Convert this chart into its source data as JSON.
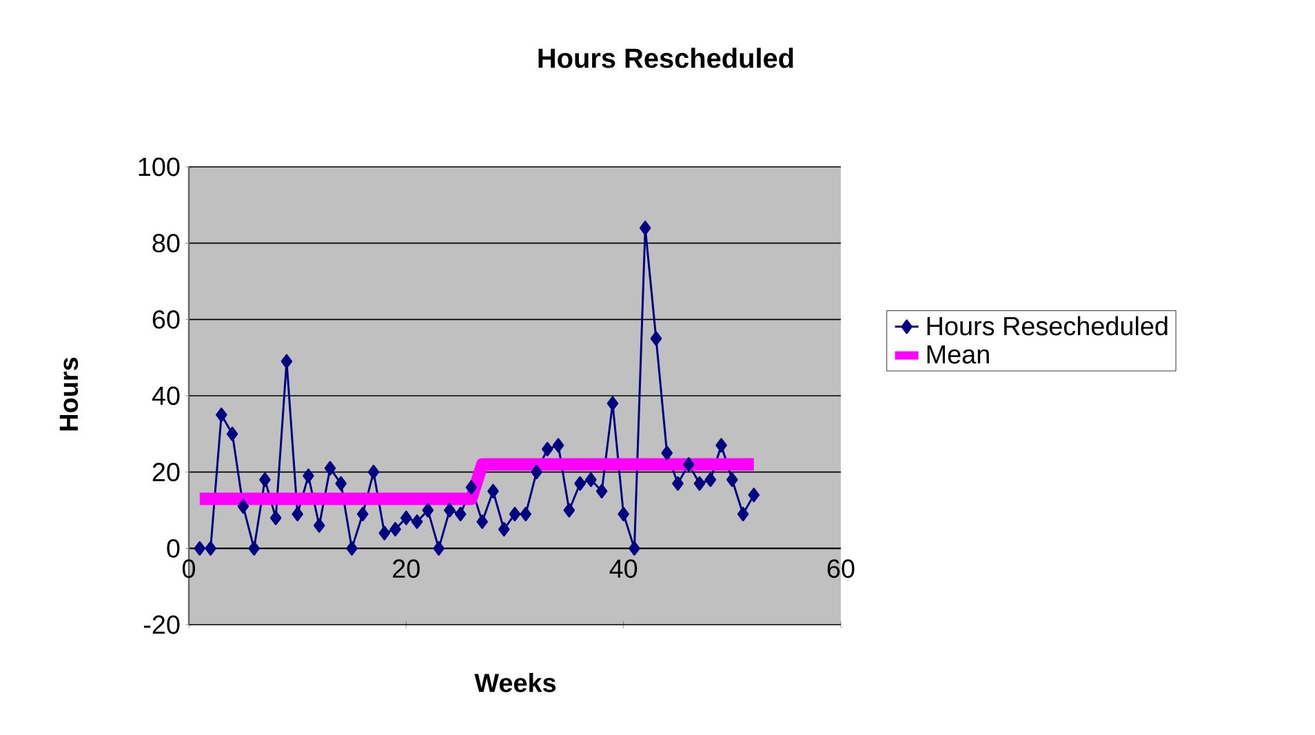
{
  "chart_data": {
    "type": "line",
    "title": "Hours Rescheduled",
    "xlabel": "Weeks",
    "ylabel": "Hours",
    "xlim": [
      0,
      60
    ],
    "xticks": [
      0,
      20,
      40,
      60
    ],
    "ylim": [
      -20,
      100
    ],
    "yticks": [
      -20,
      0,
      20,
      40,
      60,
      80,
      100
    ],
    "grid": "y",
    "legend": "right",
    "line_style": "solid",
    "series": [
      {
        "name": "Hours Resecheduled",
        "color": "#000080",
        "marker": "diamond",
        "x": [
          1,
          2,
          3,
          4,
          5,
          6,
          7,
          8,
          9,
          10,
          11,
          12,
          13,
          14,
          15,
          16,
          17,
          18,
          19,
          20,
          21,
          22,
          23,
          24,
          25,
          26,
          27,
          28,
          29,
          30,
          31,
          32,
          33,
          34,
          35,
          36,
          37,
          38,
          39,
          40,
          41,
          42,
          43,
          44,
          45,
          46,
          47,
          48,
          49,
          50,
          51,
          52
        ],
        "values": [
          0,
          0,
          35,
          30,
          11,
          0,
          18,
          8,
          49,
          9,
          19,
          6,
          21,
          17,
          0,
          9,
          20,
          4,
          5,
          8,
          7,
          10,
          0,
          10,
          9,
          16,
          7,
          15,
          5,
          9,
          9,
          20,
          26,
          27,
          10,
          17,
          18,
          15,
          38,
          9,
          0,
          84,
          55,
          25,
          17,
          22,
          17,
          18,
          27,
          18,
          9,
          14
        ]
      },
      {
        "name": "Mean",
        "color": "#ff00ff",
        "marker": "none",
        "x": [
          1,
          2,
          3,
          4,
          5,
          6,
          7,
          8,
          9,
          10,
          11,
          12,
          13,
          14,
          15,
          16,
          17,
          18,
          19,
          20,
          21,
          22,
          23,
          24,
          25,
          26,
          27,
          28,
          29,
          30,
          31,
          32,
          33,
          34,
          35,
          36,
          37,
          38,
          39,
          40,
          41,
          42,
          43,
          44,
          45,
          46,
          47,
          48,
          49,
          50,
          51,
          52
        ],
        "values": [
          13,
          13,
          13,
          13,
          13,
          13,
          13,
          13,
          13,
          13,
          13,
          13,
          13,
          13,
          13,
          13,
          13,
          13,
          13,
          13,
          13,
          13,
          13,
          13,
          13,
          13,
          22,
          22,
          22,
          22,
          22,
          22,
          22,
          22,
          22,
          22,
          22,
          22,
          22,
          22,
          22,
          22,
          22,
          22,
          22,
          22,
          22,
          22,
          22,
          22,
          22,
          22
        ]
      }
    ]
  }
}
